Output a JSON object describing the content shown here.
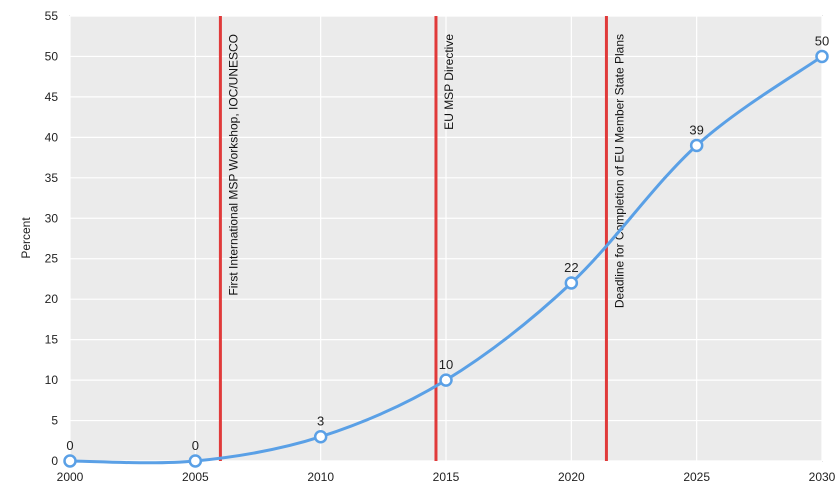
{
  "chart_data": {
    "type": "line",
    "ylabel": "Percent",
    "xlabel": "",
    "title": "",
    "x": [
      2000,
      2005,
      2010,
      2015,
      2020,
      2025,
      2030
    ],
    "values": [
      0,
      0,
      3,
      10,
      22,
      39,
      50
    ],
    "data_labels": [
      "0",
      "0",
      "3",
      "10",
      "22",
      "39",
      "50"
    ],
    "xlim": [
      2000,
      2030
    ],
    "ylim": [
      0,
      55
    ],
    "xticks": [
      "2000",
      "2005",
      "2010",
      "2015",
      "2020",
      "2025",
      "2030"
    ],
    "yticks": [
      "0",
      "5",
      "10",
      "15",
      "20",
      "25",
      "30",
      "35",
      "40",
      "45",
      "50",
      "55"
    ],
    "grid": true,
    "smooth": true,
    "markers": "open-circle",
    "annotations": [
      {
        "x": 2006,
        "text": "First International MSP Workshop, IOC/UNESCO"
      },
      {
        "x": 2014.6,
        "text": "EU MSP Directive"
      },
      {
        "x": 2021.4,
        "text": "Deadline for Completion of EU Member State Plans"
      }
    ],
    "colors": {
      "line": "#5aa0e6",
      "annotation_line": "#e03a3a",
      "plot_background": "#ebebeb",
      "grid": "#ffffff"
    }
  }
}
